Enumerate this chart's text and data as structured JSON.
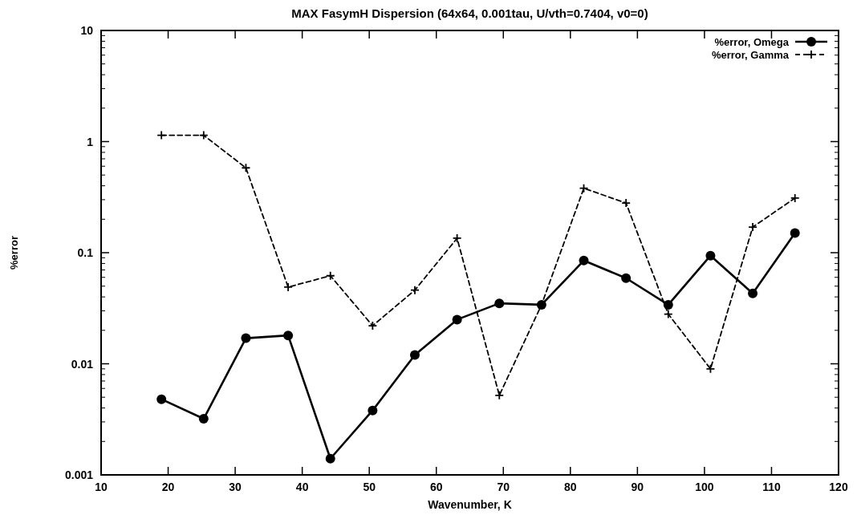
{
  "chart_data": {
    "type": "line",
    "title": "MAX FasymH Dispersion (64x64, 0.001tau, U/vth=0.7404, v0=0)",
    "xlabel": "Wavenumber, K",
    "ylabel": "%error",
    "x": [
      19,
      25.3,
      31.6,
      37.9,
      44.2,
      50.5,
      56.8,
      63.1,
      69.4,
      75.7,
      82,
      88.3,
      94.6,
      100.9,
      107.2,
      113.5
    ],
    "series": [
      {
        "name": "%error, Omega",
        "color": "#000000",
        "marker": "circle",
        "line_style": "solid",
        "values": [
          0.0048,
          0.0032,
          0.017,
          0.018,
          0.0014,
          0.0038,
          0.012,
          0.025,
          0.035,
          0.034,
          0.085,
          0.059,
          0.034,
          0.094,
          0.043,
          0.15
        ]
      },
      {
        "name": "%error, Gamma",
        "color": "#000000",
        "marker": "cross",
        "line_style": "dashed",
        "values": [
          1.14,
          1.14,
          0.58,
          0.049,
          0.062,
          0.022,
          0.046,
          0.135,
          0.0052,
          0.034,
          0.38,
          0.28,
          0.028,
          0.009,
          0.17,
          0.31
        ]
      }
    ],
    "log": "y",
    "xlim": [
      10,
      120
    ],
    "xticks": [
      10,
      20,
      30,
      40,
      50,
      60,
      70,
      80,
      90,
      100,
      110,
      120
    ],
    "ylim": [
      0.001,
      10
    ],
    "yticks": [
      0.001,
      0.01,
      0.1,
      1,
      10
    ],
    "grid": false,
    "legend": "top right"
  }
}
